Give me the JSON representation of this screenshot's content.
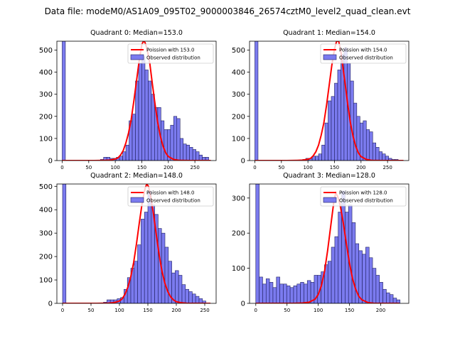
{
  "suptitle": "Data file: modeM0/AS1A09_095T02_9000003846_26574cztM0_level2_quad_clean.evt",
  "colors": {
    "bar_fill": "#7b7bef",
    "bar_edge": "#1f1f5e",
    "curve": "#ff0000",
    "axis": "#000000"
  },
  "chart_data": [
    {
      "type": "bar",
      "title": "Quadrant 0: Median=153.0",
      "xlim": [
        -10,
        290
      ],
      "ylim": [
        0,
        540
      ],
      "xticks": [
        0,
        50,
        100,
        150,
        200,
        250
      ],
      "yticks": [
        0,
        100,
        200,
        300,
        400,
        500
      ],
      "bin_width": 6,
      "legend": {
        "curve_label": "Poission with 153.0",
        "bar_label": "Observed distribution",
        "placement": "top-right"
      },
      "bins": {
        "x": [
          0,
          72,
          78,
          84,
          90,
          96,
          102,
          108,
          114,
          120,
          126,
          132,
          138,
          144,
          150,
          156,
          162,
          168,
          174,
          180,
          186,
          192,
          198,
          204,
          210,
          216,
          222,
          228,
          234,
          240,
          246,
          252,
          258,
          264,
          270
        ],
        "counts": [
          540,
          5,
          15,
          15,
          10,
          10,
          15,
          20,
          40,
          70,
          180,
          210,
          360,
          440,
          470,
          410,
          360,
          300,
          240,
          240,
          180,
          140,
          140,
          160,
          200,
          190,
          100,
          75,
          70,
          60,
          50,
          40,
          25,
          15,
          15
        ]
      },
      "curve": {
        "x": [
          0,
          60,
          80,
          90,
          100,
          105,
          110,
          115,
          120,
          125,
          130,
          135,
          140,
          145,
          150,
          153,
          156,
          160,
          165,
          170,
          175,
          180,
          185,
          190,
          195,
          200,
          210,
          220,
          240,
          280
        ],
        "y": [
          0,
          0,
          1,
          2,
          7,
          12,
          25,
          45,
          80,
          125,
          185,
          270,
          360,
          450,
          525,
          550,
          535,
          505,
          440,
          345,
          255,
          170,
          110,
          65,
          35,
          18,
          5,
          1,
          0,
          0
        ]
      }
    },
    {
      "type": "bar",
      "title": "Quadrant 1: Median=154.0",
      "xlim": [
        -10,
        290
      ],
      "ylim": [
        0,
        540
      ],
      "xticks": [
        0,
        50,
        100,
        150,
        200,
        250
      ],
      "yticks": [
        0,
        100,
        200,
        300,
        400,
        500
      ],
      "bin_width": 6,
      "legend": {
        "curve_label": "Poission with 154.0",
        "bar_label": "Observed distribution",
        "placement": "top-right"
      },
      "bins": {
        "x": [
          0,
          90,
          96,
          102,
          108,
          114,
          120,
          126,
          132,
          138,
          144,
          150,
          156,
          162,
          168,
          174,
          180,
          186,
          192,
          198,
          204,
          210,
          216,
          222,
          228,
          234,
          240,
          246,
          252,
          258,
          264
        ],
        "counts": [
          540,
          5,
          10,
          10,
          20,
          20,
          30,
          70,
          170,
          270,
          290,
          350,
          410,
          480,
          510,
          440,
          360,
          260,
          200,
          170,
          180,
          140,
          130,
          80,
          60,
          40,
          30,
          20,
          10,
          5,
          5
        ]
      },
      "curve": {
        "x": [
          0,
          60,
          80,
          90,
          100,
          105,
          110,
          115,
          120,
          125,
          130,
          135,
          140,
          145,
          150,
          154,
          158,
          162,
          166,
          170,
          175,
          180,
          185,
          190,
          195,
          200,
          210,
          220,
          240,
          280
        ],
        "y": [
          0,
          0,
          1,
          2,
          6,
          10,
          22,
          40,
          70,
          115,
          170,
          250,
          340,
          430,
          505,
          550,
          540,
          495,
          420,
          350,
          255,
          170,
          110,
          65,
          35,
          18,
          5,
          1,
          0,
          0
        ]
      }
    },
    {
      "type": "bar",
      "title": "Quadrant 2: Median=148.0",
      "xlim": [
        -10,
        270
      ],
      "ylim": [
        0,
        510
      ],
      "xticks": [
        0,
        50,
        100,
        150,
        200,
        250
      ],
      "yticks": [
        0,
        100,
        200,
        300,
        400,
        500
      ],
      "bin_width": 6,
      "legend": {
        "curve_label": "Poission with 148.0",
        "bar_label": "Observed distribution",
        "placement": "top-right"
      },
      "bins": {
        "x": [
          0,
          72,
          78,
          84,
          90,
          96,
          102,
          108,
          114,
          120,
          126,
          132,
          138,
          144,
          150,
          156,
          162,
          168,
          174,
          180,
          186,
          192,
          198,
          204,
          210,
          216,
          222,
          228,
          234,
          240,
          246
        ],
        "counts": [
          510,
          5,
          15,
          15,
          15,
          20,
          25,
          60,
          110,
          150,
          180,
          250,
          360,
          390,
          480,
          420,
          380,
          320,
          300,
          240,
          180,
          130,
          140,
          120,
          80,
          60,
          50,
          40,
          30,
          20,
          10
        ]
      },
      "curve": {
        "x": [
          0,
          60,
          80,
          90,
          100,
          105,
          110,
          115,
          120,
          125,
          130,
          135,
          140,
          145,
          148,
          151,
          155,
          160,
          165,
          170,
          175,
          180,
          185,
          190,
          195,
          200,
          210,
          220,
          240,
          260
        ],
        "y": [
          0,
          0,
          1,
          3,
          10,
          20,
          40,
          70,
          115,
          175,
          255,
          345,
          430,
          490,
          510,
          500,
          455,
          380,
          290,
          205,
          135,
          85,
          50,
          28,
          15,
          7,
          2,
          0,
          0,
          0
        ]
      }
    },
    {
      "type": "bar",
      "title": "Quadrant 3: Median=128.0",
      "xlim": [
        -10,
        245
      ],
      "ylim": [
        0,
        340
      ],
      "xticks": [
        0,
        50,
        100,
        150,
        200
      ],
      "yticks": [
        0,
        100,
        200,
        300
      ],
      "bin_width": 5.5,
      "legend": {
        "curve_label": "Poission with 128.0",
        "bar_label": "Observed distribution",
        "placement": "top-right"
      },
      "bins": {
        "x": [
          0,
          5.5,
          11,
          16.5,
          22,
          27.5,
          33,
          38.5,
          44,
          49.5,
          55,
          60.5,
          66,
          71.5,
          77,
          82.5,
          88,
          93.5,
          99,
          104.5,
          110,
          115.5,
          121,
          126.5,
          132,
          137.5,
          143,
          148.5,
          154,
          159.5,
          165,
          170.5,
          176,
          181.5,
          187,
          192.5,
          198,
          203.5,
          209,
          214.5,
          220,
          225.5
        ],
        "counts": [
          340,
          75,
          55,
          70,
          60,
          45,
          75,
          55,
          55,
          50,
          45,
          50,
          55,
          60,
          55,
          65,
          60,
          80,
          80,
          90,
          110,
          120,
          160,
          190,
          260,
          320,
          260,
          280,
          230,
          170,
          150,
          140,
          160,
          130,
          100,
          80,
          60,
          40,
          30,
          25,
          15,
          10
        ]
      },
      "curve": {
        "x": [
          0,
          60,
          75,
          85,
          95,
          100,
          105,
          110,
          115,
          120,
          125,
          128,
          131,
          135,
          140,
          145,
          150,
          155,
          160,
          165,
          170,
          180,
          190,
          200,
          230
        ],
        "y": [
          0,
          0,
          1,
          3,
          12,
          25,
          50,
          90,
          150,
          220,
          290,
          315,
          305,
          280,
          230,
          170,
          115,
          70,
          40,
          20,
          10,
          2,
          0,
          0,
          0
        ]
      }
    }
  ]
}
